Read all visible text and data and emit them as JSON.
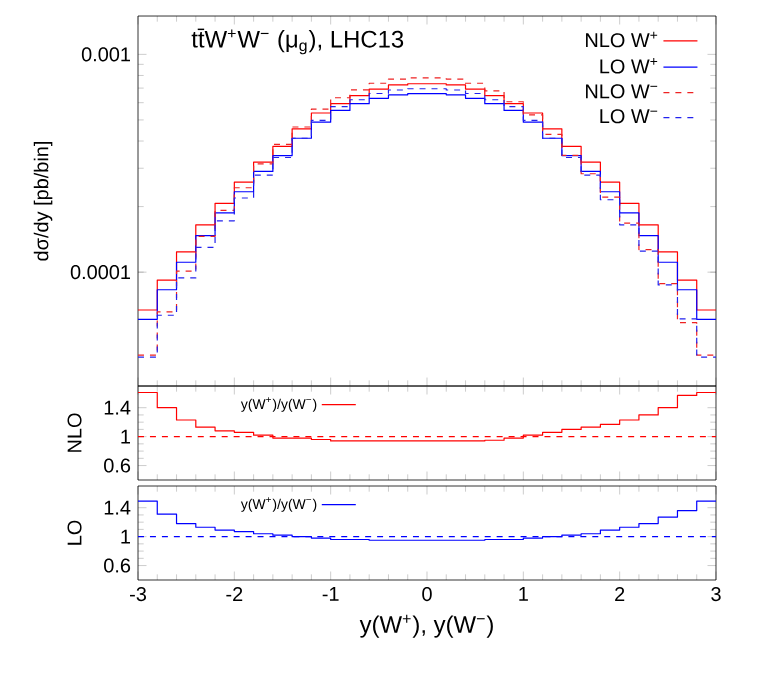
{
  "chart_data": [
    {
      "type": "histogram",
      "title": "tt̄W$^{+}$W$^{−}$ (μ$_{g}$), LHC13",
      "ylabel": "dσ/dy [pb/bin]",
      "log": "y",
      "legend": "top right",
      "tick_labels": "y",
      "xlim": [
        -3,
        3
      ],
      "xticks": [
        -3,
        -2,
        -1,
        0,
        1,
        2,
        3
      ],
      "ylim": [
        3e-05,
        0.0015
      ],
      "yticks": [
        0.0001,
        0.001
      ],
      "bins": [
        -3,
        -2.8,
        -2.6,
        -2.4,
        -2.2,
        -2,
        -1.8,
        -1.6,
        -1.4,
        -1.2,
        -1,
        -0.8,
        -0.6,
        -0.4,
        -0.2,
        0,
        0.2,
        0.4,
        0.6,
        0.8,
        1,
        1.2,
        1.4,
        1.6,
        1.8,
        2,
        2.2,
        2.4,
        2.6,
        2.8,
        3
      ],
      "series": [
        {
          "name": "NLO W$^{+}$",
          "color": "#ff0000",
          "line_style": "solid",
          "values": [
            6.7e-05,
            9.2e-05,
            0.000124,
            0.000165,
            0.000207,
            0.000259,
            0.00032,
            0.000378,
            0.000455,
            0.000538,
            0.000594,
            0.000646,
            0.000693,
            0.000724,
            0.000733,
            0.000733,
            0.000724,
            0.000693,
            0.000646,
            0.000594,
            0.000538,
            0.000455,
            0.000378,
            0.00032,
            0.000259,
            0.000207,
            0.000165,
            0.000124,
            9.2e-05,
            6.7e-05
          ]
        },
        {
          "name": "LO W$^{+}$",
          "color": "#0000ff",
          "line_style": "solid",
          "values": [
            6.07e-05,
            8.3e-05,
            0.000111,
            0.000147,
            0.000187,
            0.000234,
            0.00029,
            0.000343,
            0.000412,
            0.000488,
            0.000553,
            0.000594,
            0.000628,
            0.000652,
            0.00066,
            0.00066,
            0.000652,
            0.000628,
            0.000594,
            0.000553,
            0.000488,
            0.000412,
            0.000343,
            0.00029,
            0.000234,
            0.000187,
            0.000147,
            0.000111,
            8.3e-05,
            6.07e-05
          ]
        },
        {
          "name": "NLO W$^{−}$",
          "color": "#ee2222",
          "line_style": "dashed",
          "values": [
            4.16e-05,
            6.57e-05,
            0.000101,
            0.000146,
            0.000192,
            0.000244,
            0.000314,
            0.000386,
            0.000464,
            0.00056,
            0.000632,
            0.000687,
            0.000737,
            0.00077,
            0.00078,
            0.00078,
            0.00077,
            0.000737,
            0.00068,
            0.000606,
            0.000527,
            0.000429,
            0.000344,
            0.000283,
            0.000221,
            0.000168,
            0.000127,
            8.86e-05,
            5.86e-05,
            4.16e-05
          ]
        },
        {
          "name": "LO W$^{−}$",
          "color": "#2222ee",
          "line_style": "dashed",
          "values": [
            4.07e-05,
            6.34e-05,
            9.41e-05,
            0.00013,
            0.000172,
            0.000219,
            0.000279,
            0.000336,
            0.000412,
            0.000498,
            0.000576,
            0.000619,
            0.000661,
            0.000686,
            0.000695,
            0.000695,
            0.000686,
            0.000661,
            0.000619,
            0.000576,
            0.000498,
            0.000412,
            0.000336,
            0.000279,
            0.000215,
            0.000165,
            0.000125,
            8.74e-05,
            6.1e-05,
            4.07e-05
          ]
        }
      ]
    },
    {
      "type": "histogram",
      "ylabel": "NLO",
      "legend": "top left",
      "tick_labels": "y",
      "xlim": [
        -3,
        3
      ],
      "xticks": [
        -3,
        -2,
        -1,
        0,
        1,
        2,
        3
      ],
      "ylim": [
        0.4,
        1.7
      ],
      "yticks": [
        0.6,
        1,
        1.4
      ],
      "bins": [
        -3,
        -2.8,
        -2.6,
        -2.4,
        -2.2,
        -2,
        -1.8,
        -1.6,
        -1.4,
        -1.2,
        -1,
        -0.8,
        -0.6,
        -0.4,
        -0.2,
        0,
        0.2,
        0.4,
        0.6,
        0.8,
        1,
        1.2,
        1.4,
        1.6,
        1.8,
        2,
        2.2,
        2.4,
        2.6,
        2.8,
        3
      ],
      "ref_lines": [
        {
          "axis": "y",
          "value": 1,
          "color": "#ff0000",
          "line_style": "dashed"
        }
      ],
      "series": [
        {
          "name": "y(W$^{+}$)/y(W$^{−}$)",
          "color": "#ff0000",
          "line_style": "solid",
          "values": [
            1.61,
            1.4,
            1.23,
            1.13,
            1.08,
            1.06,
            1.02,
            0.98,
            0.98,
            0.96,
            0.94,
            0.94,
            0.94,
            0.94,
            0.94,
            0.94,
            0.94,
            0.94,
            0.95,
            0.98,
            1.02,
            1.06,
            1.1,
            1.13,
            1.17,
            1.23,
            1.3,
            1.4,
            1.57,
            1.61
          ]
        }
      ]
    },
    {
      "type": "histogram",
      "ylabel": "LO",
      "xlabel": "y(W$^{+}$), y(W$^{−}$)",
      "legend": "top left",
      "xlim": [
        -3,
        3
      ],
      "xticks": [
        -3,
        -2,
        -1,
        0,
        1,
        2,
        3
      ],
      "ylim": [
        0.4,
        1.7
      ],
      "yticks": [
        0.6,
        1,
        1.4
      ],
      "bins": [
        -3,
        -2.8,
        -2.6,
        -2.4,
        -2.2,
        -2,
        -1.8,
        -1.6,
        -1.4,
        -1.2,
        -1,
        -0.8,
        -0.6,
        -0.4,
        -0.2,
        0,
        0.2,
        0.4,
        0.6,
        0.8,
        1,
        1.2,
        1.4,
        1.6,
        1.8,
        2,
        2.2,
        2.4,
        2.6,
        2.8,
        3
      ],
      "ref_lines": [
        {
          "axis": "y",
          "value": 1,
          "color": "#0000ff",
          "line_style": "dashed"
        }
      ],
      "series": [
        {
          "name": "y(W$^{+}$)/y(W$^{−}$)",
          "color": "#0000ff",
          "line_style": "solid",
          "values": [
            1.49,
            1.31,
            1.18,
            1.13,
            1.09,
            1.07,
            1.04,
            1.02,
            1.0,
            0.98,
            0.96,
            0.96,
            0.95,
            0.95,
            0.95,
            0.95,
            0.95,
            0.95,
            0.96,
            0.96,
            0.98,
            1.0,
            1.02,
            1.04,
            1.09,
            1.13,
            1.18,
            1.27,
            1.36,
            1.49
          ]
        }
      ]
    }
  ]
}
